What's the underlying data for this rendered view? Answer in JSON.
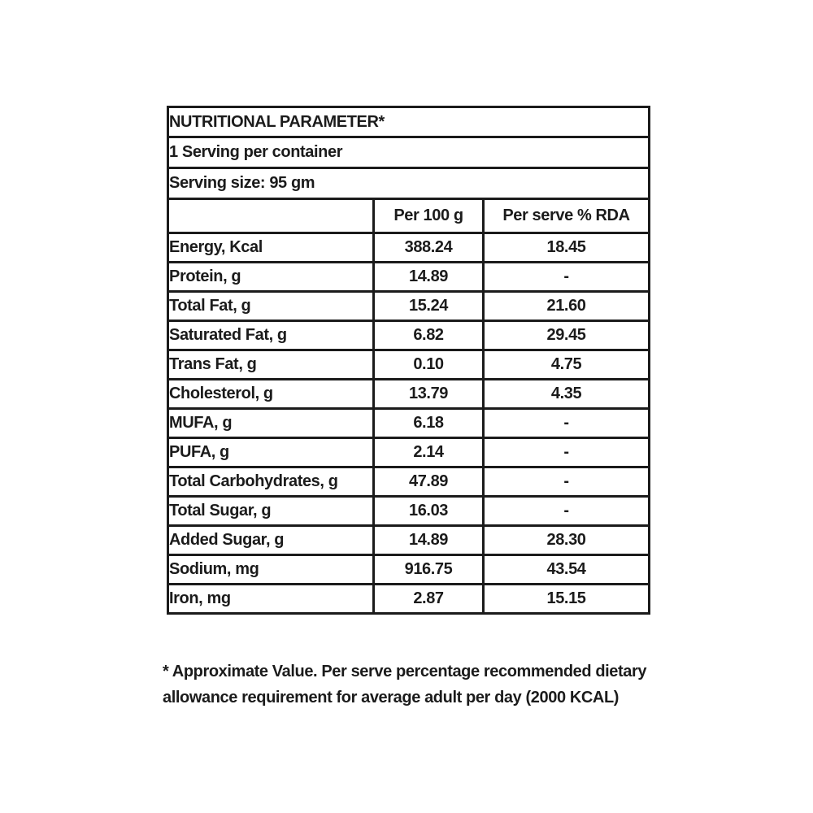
{
  "page": {
    "background": "#ffffff"
  },
  "colors": {
    "text": "#1b1b1b",
    "border": "#1b1b1b",
    "background": "#ffffff"
  },
  "table": {
    "title": "NUTRITIONAL PARAMETER*",
    "servings_line": "1 Serving per container",
    "serving_size_line": "Serving size: 95 gm",
    "col_headers": {
      "blank": "",
      "per_100g": "Per 100 g",
      "per_serve_rda": "Per serve % RDA"
    },
    "rows": [
      {
        "label": "Energy, Kcal",
        "per_100g": "388.24",
        "per_serve_rda": "18.45"
      },
      {
        "label": "Protein, g",
        "per_100g": "14.89",
        "per_serve_rda": "-"
      },
      {
        "label": "Total Fat, g",
        "per_100g": "15.24",
        "per_serve_rda": "21.60"
      },
      {
        "label": "Saturated Fat, g",
        "per_100g": "6.82",
        "per_serve_rda": "29.45"
      },
      {
        "label": "Trans Fat, g",
        "per_100g": "0.10",
        "per_serve_rda": "4.75"
      },
      {
        "label": "Cholesterol, g",
        "per_100g": "13.79",
        "per_serve_rda": "4.35"
      },
      {
        "label": "MUFA, g",
        "per_100g": "6.18",
        "per_serve_rda": "-"
      },
      {
        "label": "PUFA, g",
        "per_100g": "2.14",
        "per_serve_rda": "-"
      },
      {
        "label": "Total Carbohydrates, g",
        "per_100g": "47.89",
        "per_serve_rda": "-"
      },
      {
        "label": "Total Sugar, g",
        "per_100g": "16.03",
        "per_serve_rda": "-"
      },
      {
        "label": "Added Sugar, g",
        "per_100g": "14.89",
        "per_serve_rda": "28.30"
      },
      {
        "label": "Sodium, mg",
        "per_100g": "916.75",
        "per_serve_rda": "43.54"
      },
      {
        "label": "Iron, mg",
        "per_100g": "2.87",
        "per_serve_rda": "15.15"
      }
    ]
  },
  "footnote": "* Approximate Value. Per serve percentage recommended dietary\nallowance requirement for average adult per day (2000 KCAL)"
}
